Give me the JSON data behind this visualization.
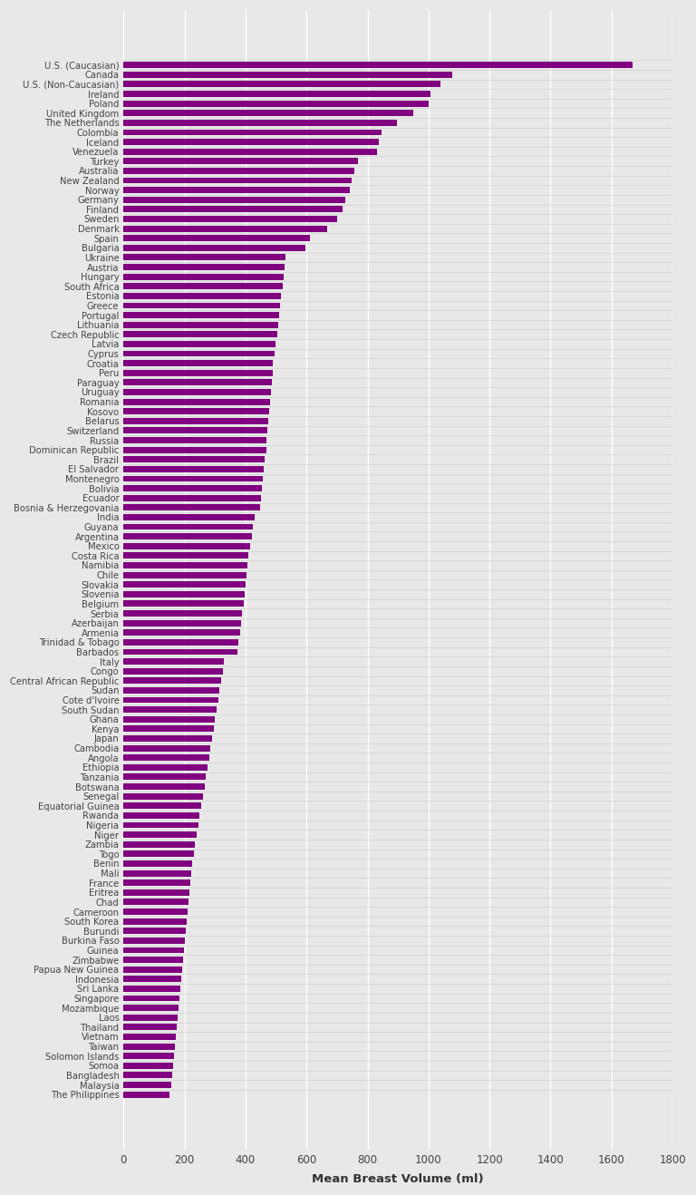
{
  "countries": [
    "U.S. (Caucasian)",
    "Canada",
    "U.S. (Non-Caucasian)",
    "Ireland",
    "Poland",
    "United Kingdom",
    "The Netherlands",
    "Colombia",
    "Iceland",
    "Venezuela",
    "Turkey",
    "Australia",
    "New Zealand",
    "Norway",
    "Germany",
    "Finland",
    "Sweden",
    "Denmark",
    "Spain",
    "Bulgaria",
    "Ukraine",
    "Austria",
    "Hungary",
    "South Africa",
    "Estonia",
    "Greece",
    "Portugal",
    "Lithuania",
    "Czech Republic",
    "Latvia",
    "Cyprus",
    "Croatia",
    "Peru",
    "Paraguay",
    "Uruguay",
    "Romania",
    "Kosovo",
    "Belarus",
    "Switzerland",
    "Russia",
    "Dominican Republic",
    "Brazil",
    "El Salvador",
    "Montenegro",
    "Bolivia",
    "Ecuador",
    "Bosnia & Herzegovania",
    "India",
    "Guyana",
    "Argentina",
    "Mexico",
    "Costa Rica",
    "Namibia",
    "Chile",
    "Slovakia",
    "Slovenia",
    "Belgium",
    "Serbia",
    "Azerbaijan",
    "Armenia",
    "Trinidad & Tobago",
    "Barbados",
    "Italy",
    "Congo",
    "Central African Republic",
    "Sudan",
    "Cote d'Ivoire",
    "South Sudan",
    "Ghana",
    "Kenya",
    "Japan",
    "Cambodia",
    "Angola",
    "Ethiopia",
    "Tanzania",
    "Botswana",
    "Senegal",
    "Equatorial Guinea",
    "Rwanda",
    "Nigeria",
    "Niger",
    "Zambia",
    "Togo",
    "Benin",
    "Mali",
    "France",
    "Eritrea",
    "Chad",
    "Cameroon",
    "South Korea",
    "Burundi",
    "Burkina Faso",
    "Guinea",
    "Zimbabwe",
    "Papua New Guinea",
    "Indonesia",
    "Sri Lanka",
    "Singapore",
    "Mozambique",
    "Laos",
    "Thailand",
    "Vietnam",
    "Taiwan",
    "Solomon Islands",
    "Somoa",
    "Bangladesh",
    "Malaysia",
    "The Philippines"
  ],
  "values": [
    1668,
    1079,
    1040,
    1006,
    1000,
    950,
    896,
    846,
    838,
    831,
    768,
    757,
    747,
    742,
    728,
    718,
    700,
    668,
    610,
    596,
    530,
    528,
    524,
    521,
    516,
    512,
    510,
    507,
    503,
    498,
    494,
    490,
    488,
    485,
    483,
    480,
    477,
    474,
    472,
    469,
    467,
    464,
    461,
    458,
    455,
    452,
    449,
    430,
    425,
    420,
    415,
    410,
    407,
    404,
    400,
    397,
    393,
    389,
    385,
    381,
    377,
    373,
    330,
    325,
    320,
    315,
    310,
    305,
    300,
    295,
    290,
    285,
    280,
    275,
    270,
    265,
    260,
    255,
    250,
    245,
    240,
    235,
    230,
    225,
    222,
    219,
    216,
    213,
    210,
    207,
    204,
    200,
    197,
    194,
    191,
    188,
    185,
    182,
    179,
    176,
    173,
    170,
    167,
    164,
    161,
    158,
    155,
    152
  ],
  "bar_color": "#800080",
  "background_color": "#e8e8e8",
  "grid_color": "#ffffff",
  "xlabel": "Mean Breast Volume (ml)",
  "xlim": [
    0,
    1800
  ],
  "xticks": [
    0,
    200,
    400,
    600,
    800,
    1000,
    1200,
    1400,
    1600,
    1800
  ]
}
